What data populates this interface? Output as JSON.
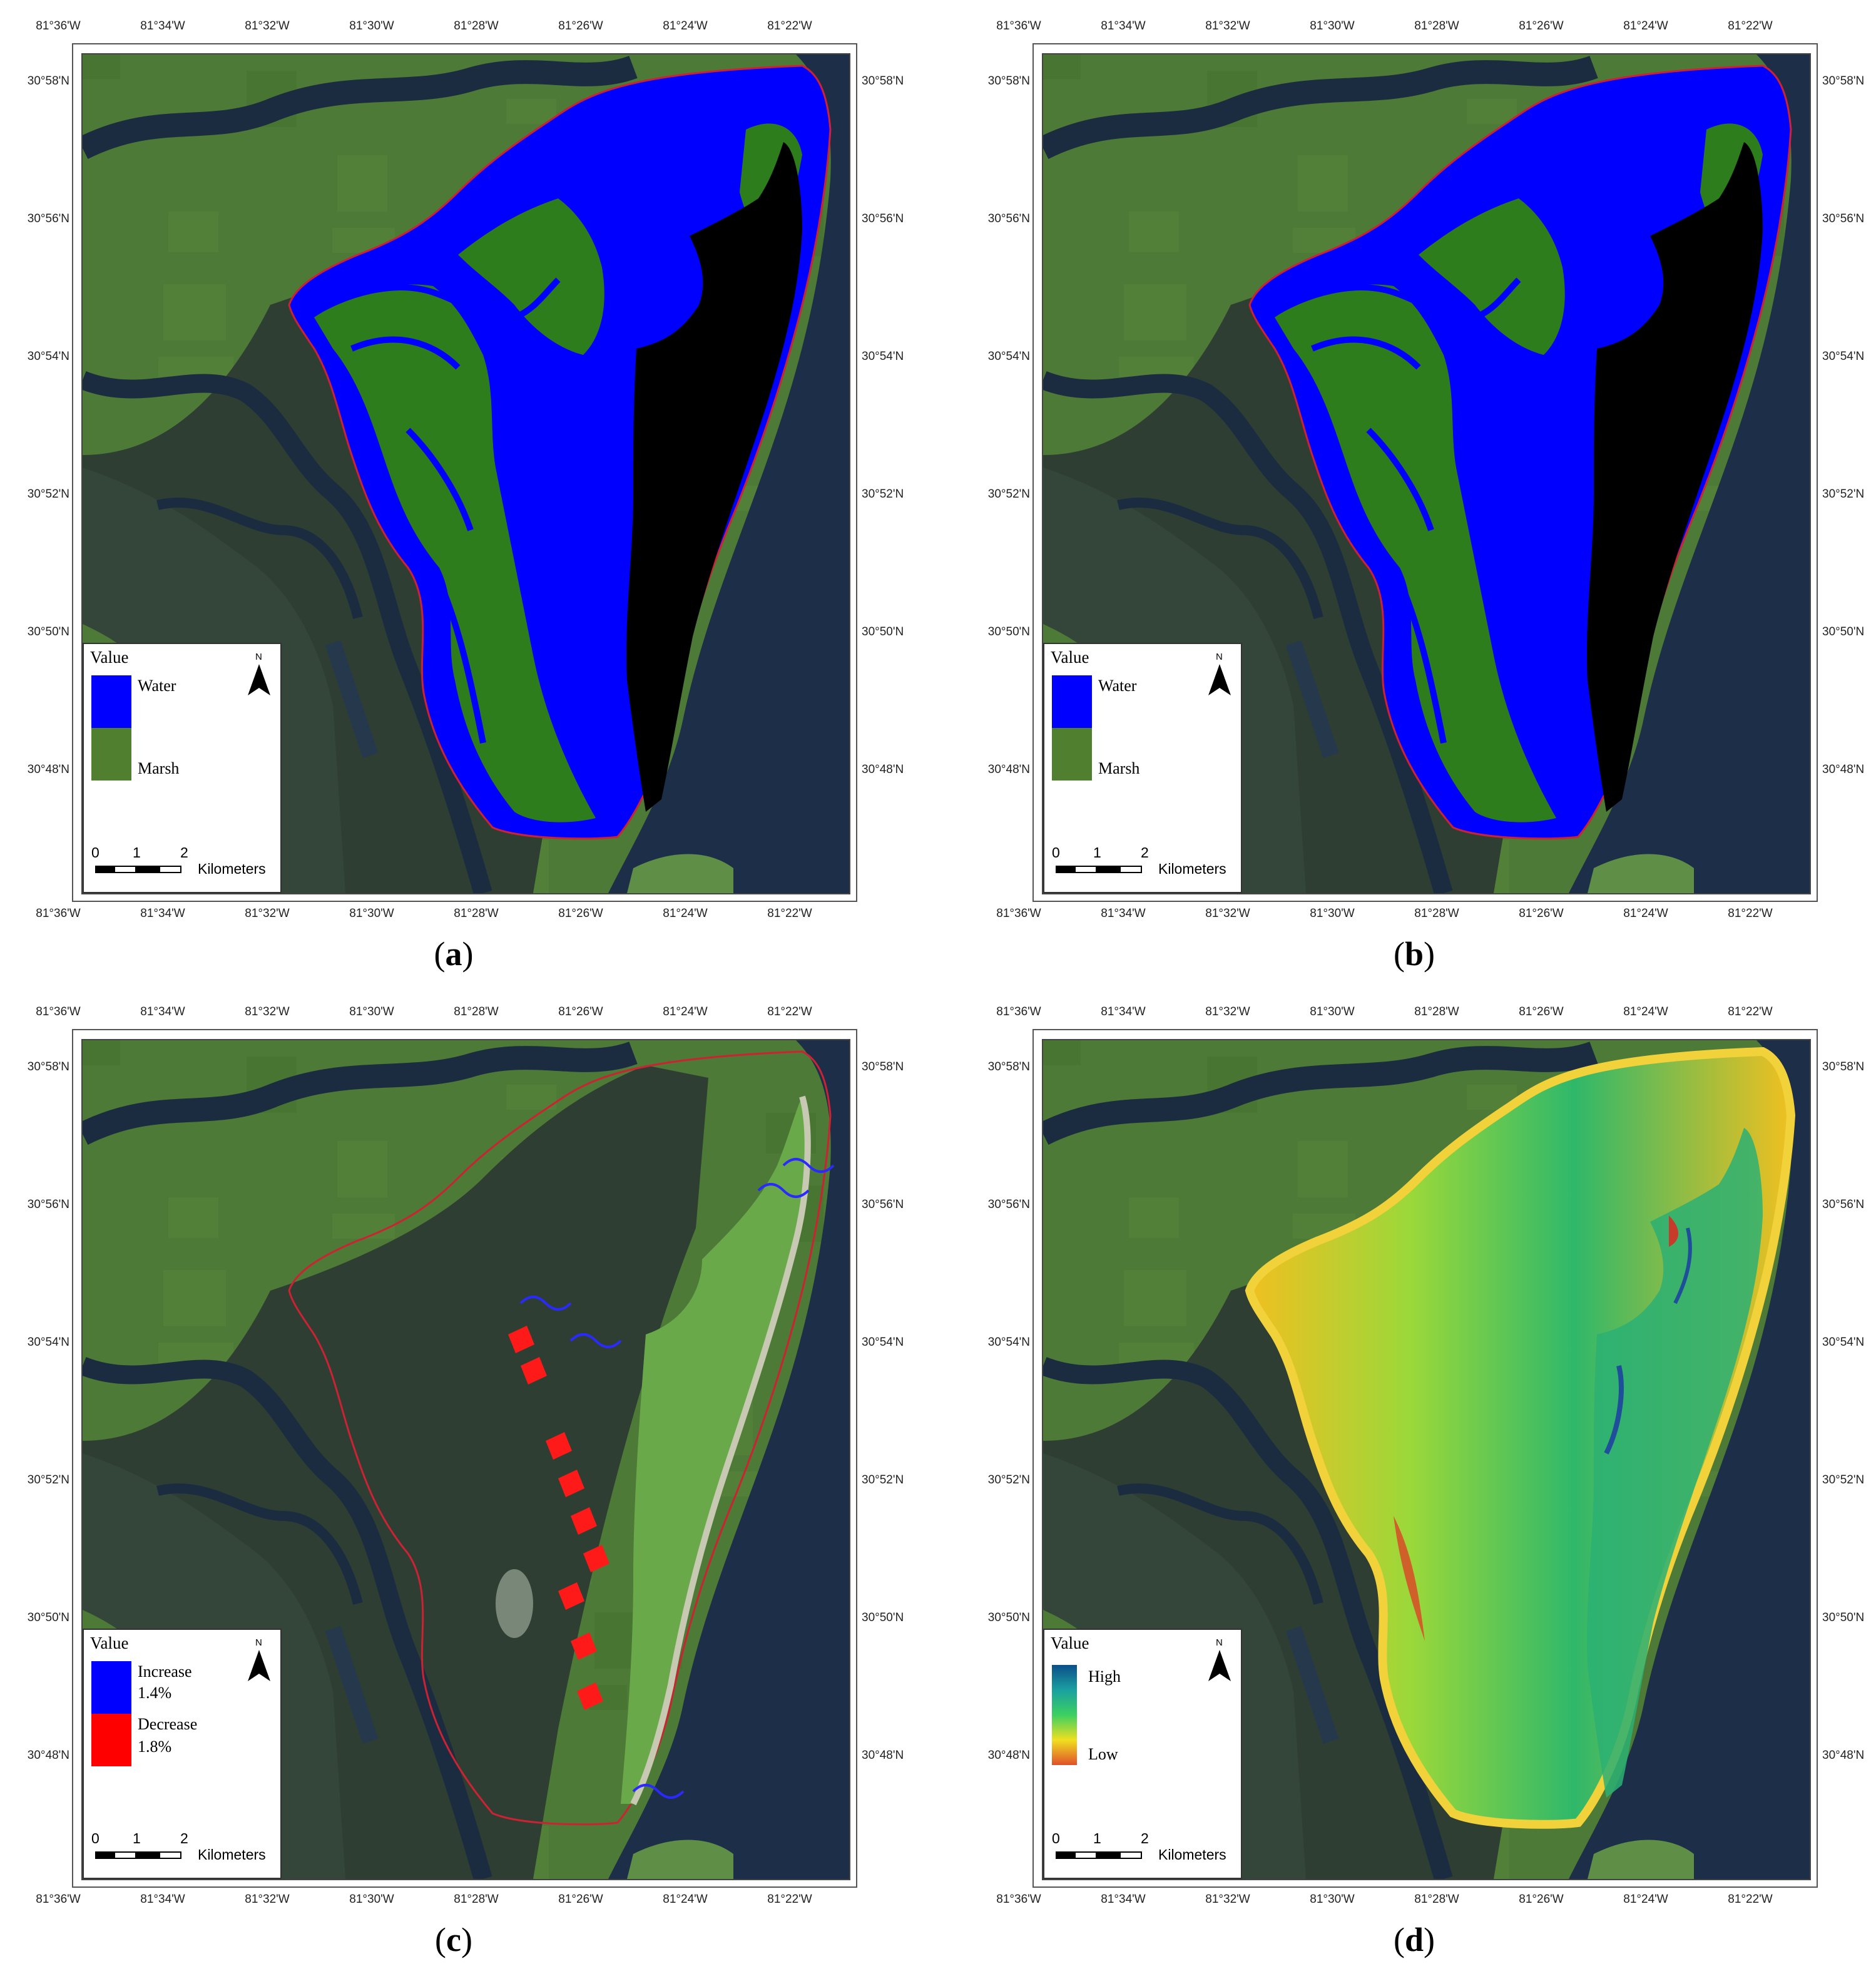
{
  "axes": {
    "lon_ticks": [
      "81°36'W",
      "81°34'W",
      "81°32'W",
      "81°30'W",
      "81°28'W",
      "81°26'W",
      "81°24'W",
      "81°22'W"
    ],
    "lat_ticks": [
      "30°58'N",
      "30°56'N",
      "30°54'N",
      "30°52'N",
      "30°50'N",
      "30°48'N"
    ]
  },
  "legend_common": {
    "title": "Value",
    "north": "N",
    "scale": {
      "labels": [
        "0",
        "1",
        "2"
      ],
      "unit": "Kilometers"
    }
  },
  "panels": [
    {
      "caption_letter": "a",
      "legend": [
        {
          "label": "Water",
          "color": "#0000ff"
        },
        {
          "label": "Marsh",
          "color": "#4f7f2f"
        }
      ]
    },
    {
      "caption_letter": "b",
      "legend": [
        {
          "label": "Water",
          "color": "#0000ff"
        },
        {
          "label": "Marsh",
          "color": "#4f7f2f"
        }
      ]
    },
    {
      "caption_letter": "c",
      "legend": [
        {
          "label": "Increase",
          "value": "1.4%",
          "color": "#0000ff"
        },
        {
          "label": "Decrease",
          "value": "1.8%",
          "color": "#ff0000"
        }
      ]
    },
    {
      "caption_letter": "d",
      "legend": [
        {
          "label": "High",
          "color": "#0b4f8a"
        },
        {
          "label": "Low",
          "color": "#e0502a"
        }
      ]
    }
  ],
  "colors": {
    "land": "#4d7a36",
    "marsh_dark": "#2f3e32",
    "water_dark": "#1b2c40",
    "ocean": "#1c2e48",
    "mask_black": "#000000",
    "water_blue": "#0000ff",
    "marsh_green": "#2e7d1c",
    "outline_red": "#cc2233"
  }
}
